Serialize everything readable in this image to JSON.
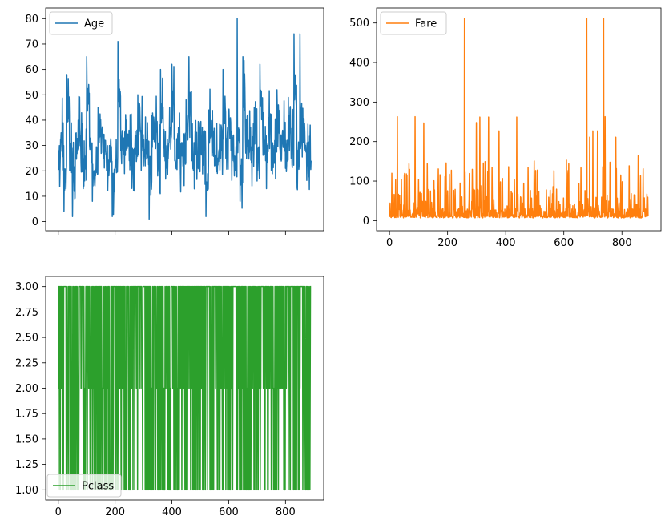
{
  "chart_data": [
    {
      "type": "line",
      "series": [
        {
          "name": "Age",
          "color": "#1f77b4"
        }
      ],
      "legend": "top-left",
      "xlim": [
        -44.5,
        934.5
      ],
      "x_tick_values": [
        0,
        200,
        400,
        600,
        800
      ],
      "x_tick_labels_shown": false,
      "ylim": [
        -3.6,
        84.2
      ],
      "y_ticks": [
        0,
        10,
        20,
        30,
        40,
        50,
        60,
        70,
        80
      ],
      "y_tick_labels": [
        "0",
        "10",
        "20",
        "30",
        "40",
        "50",
        "60",
        "70",
        "80"
      ],
      "n_points": 891,
      "y_range_of_data": [
        0.42,
        80
      ],
      "approx_values_every_10": [
        22,
        35,
        4,
        58,
        20,
        2,
        28,
        40,
        23,
        14,
        65,
        30,
        8,
        18,
        45,
        36,
        25,
        20,
        30,
        2,
        22,
        71,
        28,
        33,
        40,
        24,
        19,
        30,
        50,
        36,
        22,
        27,
        1,
        42,
        38,
        18,
        60,
        29,
        21,
        31,
        62,
        24,
        33,
        19,
        27,
        48,
        65,
        24,
        30,
        21,
        36,
        28,
        2,
        44,
        35,
        22,
        19,
        33,
        60,
        25,
        40,
        28,
        18,
        38,
        8,
        65,
        27,
        32,
        23,
        45,
        16,
        62,
        33,
        24,
        41,
        20,
        30,
        52,
        29,
        36,
        21,
        49,
        25,
        74,
        22,
        33,
        40,
        28,
        19,
        24
      ]
    },
    {
      "type": "line",
      "series": [
        {
          "name": "Fare",
          "color": "#ff7f0e"
        }
      ],
      "legend": "top-left",
      "xlim": [
        -44.5,
        934.5
      ],
      "x_ticks": [
        0,
        200,
        400,
        600,
        800
      ],
      "x_tick_labels": [
        "0",
        "200",
        "400",
        "600",
        "800"
      ],
      "ylim": [
        -25.6,
        537.9
      ],
      "y_ticks": [
        0,
        100,
        200,
        300,
        400,
        500
      ],
      "y_tick_labels": [
        "0",
        "100",
        "200",
        "300",
        "400",
        "500"
      ],
      "n_points": 891,
      "y_range_of_data": [
        0,
        512.33
      ],
      "peaks": [
        {
          "x": 27,
          "y": 263
        },
        {
          "x": 88,
          "y": 263
        },
        {
          "x": 118,
          "y": 247
        },
        {
          "x": 195,
          "y": 146
        },
        {
          "x": 258,
          "y": 512
        },
        {
          "x": 299,
          "y": 248
        },
        {
          "x": 311,
          "y": 262
        },
        {
          "x": 341,
          "y": 262
        },
        {
          "x": 377,
          "y": 227
        },
        {
          "x": 438,
          "y": 262
        },
        {
          "x": 498,
          "y": 151
        },
        {
          "x": 609,
          "y": 153
        },
        {
          "x": 679,
          "y": 512
        },
        {
          "x": 689,
          "y": 211
        },
        {
          "x": 700,
          "y": 227
        },
        {
          "x": 716,
          "y": 227
        },
        {
          "x": 737,
          "y": 512
        },
        {
          "x": 742,
          "y": 263
        },
        {
          "x": 779,
          "y": 211
        },
        {
          "x": 856,
          "y": 164
        }
      ]
    },
    {
      "type": "line",
      "series": [
        {
          "name": "Pclass",
          "color": "#2ca02c"
        }
      ],
      "legend": "bottom-left",
      "xlim": [
        -44.5,
        934.5
      ],
      "x_ticks": [
        0,
        200,
        400,
        600,
        800
      ],
      "x_tick_labels": [
        "0",
        "200",
        "400",
        "600",
        "800"
      ],
      "ylim": [
        0.9,
        3.1
      ],
      "y_ticks": [
        1.0,
        1.25,
        1.5,
        1.75,
        2.0,
        2.25,
        2.5,
        2.75,
        3.0
      ],
      "y_tick_labels": [
        "1.00",
        "1.25",
        "1.50",
        "1.75",
        "2.00",
        "2.25",
        "2.50",
        "2.75",
        "3.00"
      ],
      "n_points": 891,
      "values_set": [
        1,
        2,
        3
      ]
    }
  ]
}
